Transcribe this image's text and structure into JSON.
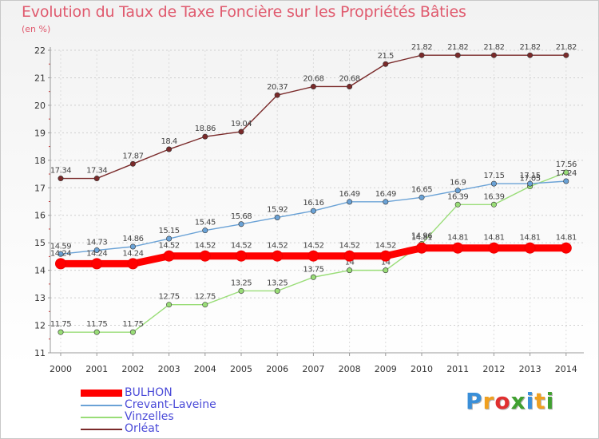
{
  "chart_data": {
    "type": "line",
    "title": "Evolution du Taux de Taxe Foncière sur les Propriétés Bâties",
    "ylabel": "(en %)",
    "xlabel": "",
    "x": [
      2000,
      2001,
      2002,
      2003,
      2004,
      2005,
      2006,
      2007,
      2008,
      2009,
      2010,
      2011,
      2012,
      2013,
      2014
    ],
    "ylim": [
      11,
      22
    ],
    "yticks": [
      11,
      12,
      13,
      14,
      15,
      16,
      17,
      18,
      19,
      20,
      21,
      22
    ],
    "grid": "horizontal dashed",
    "legend_position": "bottom-left",
    "series": [
      {
        "name": "BULHON",
        "color": "#ff0000",
        "values": [
          14.24,
          14.24,
          14.24,
          14.52,
          14.52,
          14.52,
          14.52,
          14.52,
          14.52,
          14.52,
          14.81,
          14.81,
          14.81,
          14.81,
          14.81
        ],
        "labels": [
          "14.24",
          "14.24",
          "14.24",
          "14.52",
          "14.52",
          "14.52",
          "14.52",
          "14.52",
          "14.52",
          "14.52",
          "14.81",
          "14.81",
          "14.81",
          "14.81",
          "14.81"
        ]
      },
      {
        "name": "Crevant-Laveine",
        "color": "#6aa2d6",
        "values": [
          14.59,
          14.73,
          14.86,
          15.15,
          15.45,
          15.68,
          15.92,
          16.16,
          16.49,
          16.49,
          16.65,
          16.9,
          17.15,
          17.15,
          17.24
        ],
        "labels": [
          "14.59",
          "14.73",
          "14.86",
          "15.15",
          "15.45",
          "15.68",
          "15.92",
          "16.16",
          "16.49",
          "16.49",
          "16.65",
          "16.9",
          "17.15",
          "17.15",
          "17.24"
        ]
      },
      {
        "name": "Vinzelles",
        "color": "#99dd77",
        "values": [
          11.75,
          11.75,
          11.75,
          12.75,
          12.75,
          13.25,
          13.25,
          13.75,
          14,
          14,
          14.96,
          16.39,
          16.39,
          17.05,
          17.56
        ],
        "labels": [
          "11.75",
          "11.75",
          "11.75",
          "12.75",
          "12.75",
          "13.25",
          "13.25",
          "13.75",
          "14",
          "14",
          "14.96",
          "16.39",
          "16.39",
          "17.05",
          "17.56"
        ]
      },
      {
        "name": "Orléat",
        "color": "#7a2a2a",
        "values": [
          17.34,
          17.34,
          17.87,
          18.4,
          18.86,
          19.04,
          20.37,
          20.68,
          20.68,
          21.5,
          21.82,
          21.82,
          21.82,
          21.82,
          21.82
        ],
        "labels": [
          "17.34",
          "17.34",
          "17.87",
          "18.4",
          "18.86",
          "19.04",
          "20.37",
          "20.68",
          "20.68",
          "21.5",
          "21.82",
          "21.82",
          "21.82",
          "21.82",
          "21.82"
        ]
      }
    ]
  },
  "logo": {
    "letters": [
      "P",
      "r",
      "o",
      "x",
      "i",
      "t",
      "i"
    ],
    "colors": [
      "#3a8fd8",
      "#f0a020",
      "#e03030",
      "#40a030",
      "#3a8fd8",
      "#f0a020",
      "#40a030"
    ]
  }
}
